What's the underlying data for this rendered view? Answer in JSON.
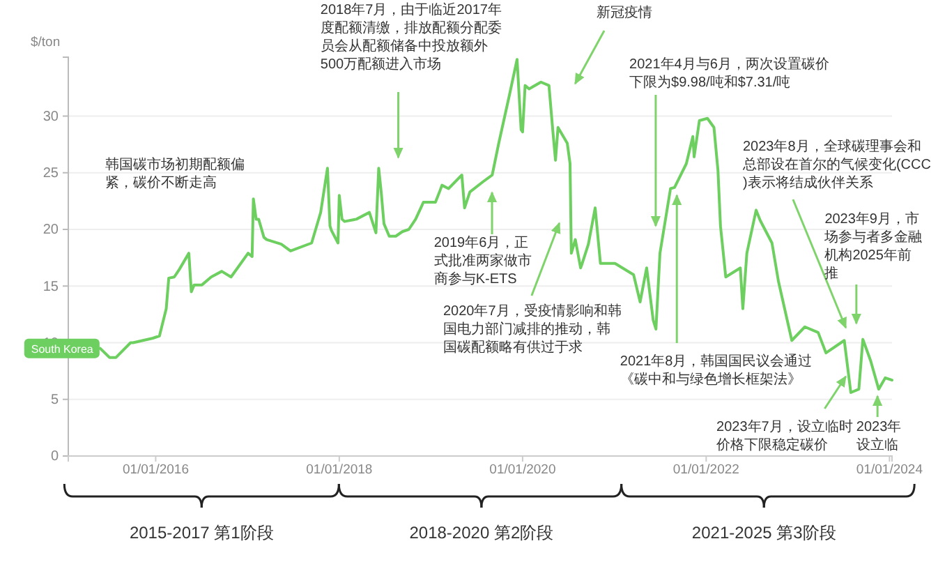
{
  "chart_data": {
    "type": "line",
    "ylabel": "$/ton",
    "xlim": [
      "2015-01-18",
      "2024-01-11"
    ],
    "xticks": [
      {
        "value": "2016-01-01",
        "label": "01/01/2016"
      },
      {
        "value": "2018-01-01",
        "label": "01/01/2018"
      },
      {
        "value": "2020-01-01",
        "label": "01/01/2020"
      },
      {
        "value": "2022-01-01",
        "label": "01/01/2022"
      },
      {
        "value": "2024-01-01",
        "label": "01/01/2024"
      }
    ],
    "ylim": [
      0,
      35.2
    ],
    "yticks": [
      0,
      5,
      10,
      15,
      20,
      25,
      30
    ],
    "grid": "y",
    "marker": "none",
    "line_style": "solid",
    "series": [
      {
        "name": "South Korea",
        "color": "#6dcf5f",
        "x": [
          "2015-05-25",
          "2015-07-01",
          "2015-07-27",
          "2015-09-23",
          "2015-10-03",
          "2015-12-21",
          "2016-01-16",
          "2016-02-12",
          "2016-02-22",
          "2016-03-15",
          "2016-04-05",
          "2016-05-12",
          "2016-05-22",
          "2016-06-02",
          "2016-07-03",
          "2016-08-09",
          "2016-09-20",
          "2016-10-27",
          "2016-11-22",
          "2017-01-03",
          "2017-01-19",
          "2017-01-24",
          "2017-02-04",
          "2017-02-14",
          "2017-03-07",
          "2017-03-18",
          "2017-05-15",
          "2017-06-21",
          "2017-09-13",
          "2017-10-19",
          "2017-11-15",
          "2017-11-25",
          "2017-12-01",
          "2017-12-27",
          "2018-01-01",
          "2018-01-12",
          "2018-01-22",
          "2018-03-10",
          "2018-05-01",
          "2018-05-27",
          "2018-06-07",
          "2018-06-17",
          "2018-06-28",
          "2018-07-19",
          "2018-08-14",
          "2018-09-09",
          "2018-10-05",
          "2018-11-01",
          "2018-11-26",
          "2018-12-02",
          "2019-01-19",
          "2019-02-04",
          "2019-02-14",
          "2019-03-12",
          "2019-05-04",
          "2019-05-15",
          "2019-06-05",
          "2019-07-27",
          "2019-09-02",
          "2019-09-28",
          "2019-11-09",
          "2019-12-10",
          "2019-12-26",
          "2020-01-01",
          "2020-01-11",
          "2020-01-27",
          "2020-03-14",
          "2020-04-15",
          "2020-04-30",
          "2020-05-11",
          "2020-05-21",
          "2020-06-27",
          "2020-07-08",
          "2020-07-13",
          "2020-07-29",
          "2020-08-19",
          "2020-08-24",
          "2020-09-19",
          "2020-10-16",
          "2020-11-06",
          "2021-01-03",
          "2021-03-18",
          "2021-04-13",
          "2021-05-09",
          "2021-06-04",
          "2021-06-15",
          "2021-07-01",
          "2021-08-12",
          "2021-08-28",
          "2021-10-14",
          "2021-11-09",
          "2021-11-14",
          "2021-12-05",
          "2022-01-06",
          "2022-02-01",
          "2022-02-17",
          "2022-02-27",
          "2022-03-20",
          "2022-05-17",
          "2022-05-27",
          "2022-06-12",
          "2022-07-19",
          "2022-08-04",
          "2022-09-20",
          "2022-10-16",
          "2022-12-08",
          "2023-01-29",
          "2023-03-23",
          "2023-04-23",
          "2023-07-05",
          "2023-07-31",
          "2023-09-01",
          "2023-09-17",
          "2023-10-18",
          "2023-11-19",
          "2023-12-15",
          "2024-01-11"
        ],
        "values": [
          9.5,
          8.7,
          8.7,
          10.0,
          10.0,
          10.4,
          10.6,
          13.0,
          15.7,
          15.8,
          16.5,
          17.9,
          14.5,
          15.1,
          15.1,
          15.8,
          16.3,
          15.8,
          16.6,
          17.9,
          17.6,
          22.7,
          20.9,
          20.9,
          19.3,
          19.1,
          18.7,
          18.1,
          18.8,
          21.5,
          25.4,
          20.3,
          19.9,
          18.8,
          23.0,
          20.9,
          20.7,
          20.9,
          21.5,
          19.7,
          25.4,
          23.3,
          20.5,
          19.4,
          19.4,
          19.8,
          20.0,
          20.9,
          22.1,
          22.4,
          22.4,
          23.3,
          23.9,
          23.6,
          24.8,
          21.9,
          23.3,
          24.2,
          24.8,
          27.6,
          31.8,
          35.0,
          28.8,
          28.6,
          32.7,
          32.4,
          33.0,
          32.7,
          28.8,
          26.1,
          29.0,
          27.6,
          25.8,
          17.9,
          19.1,
          16.6,
          16.9,
          18.7,
          21.9,
          17.0,
          17.0,
          16.0,
          13.6,
          16.6,
          12.0,
          11.2,
          17.9,
          23.6,
          23.7,
          25.8,
          28.2,
          26.4,
          29.6,
          29.8,
          29.0,
          25.2,
          20.3,
          15.8,
          16.6,
          13.0,
          17.9,
          21.7,
          20.8,
          18.8,
          15.4,
          10.2,
          11.4,
          10.9,
          9.1,
          10.2,
          5.6,
          5.9,
          10.3,
          8.4,
          5.9,
          6.9,
          6.7
        ]
      }
    ],
    "annotations": [
      "韩国碳市场初期配额偏紧，碳价不断走高",
      "2018年7月，由于临近2017年度配额清缴，排放配额分配委员会从配额储备中投放额外500万配额进入市场",
      "新冠疫情",
      "2019年6月，正式批准两家做市商参与K-ETS",
      "2020年7月，受疫情影响和韩国电力部门减排的推动，韩国碳配额略有供过于求",
      "2021年4月与6月，两次设置碳价下限为$9.98/吨和$7.31/吨",
      "2021年8月，韩国国民议会通过《碳中和与绿色增长框架法》",
      "2023年8月，全球碳理事会和总部设在首尔的气候变化(CCC)表示将结成伙伴关系",
      "2023年9月，市场参与者多金融机构2025年前推",
      "2023年7月，设立临时价格下限稳定碳价",
      "2023年设立临",
      "2015-2017 第1阶段",
      "2018-2020 第2阶段",
      "2021-2025 第3阶段"
    ]
  }
}
